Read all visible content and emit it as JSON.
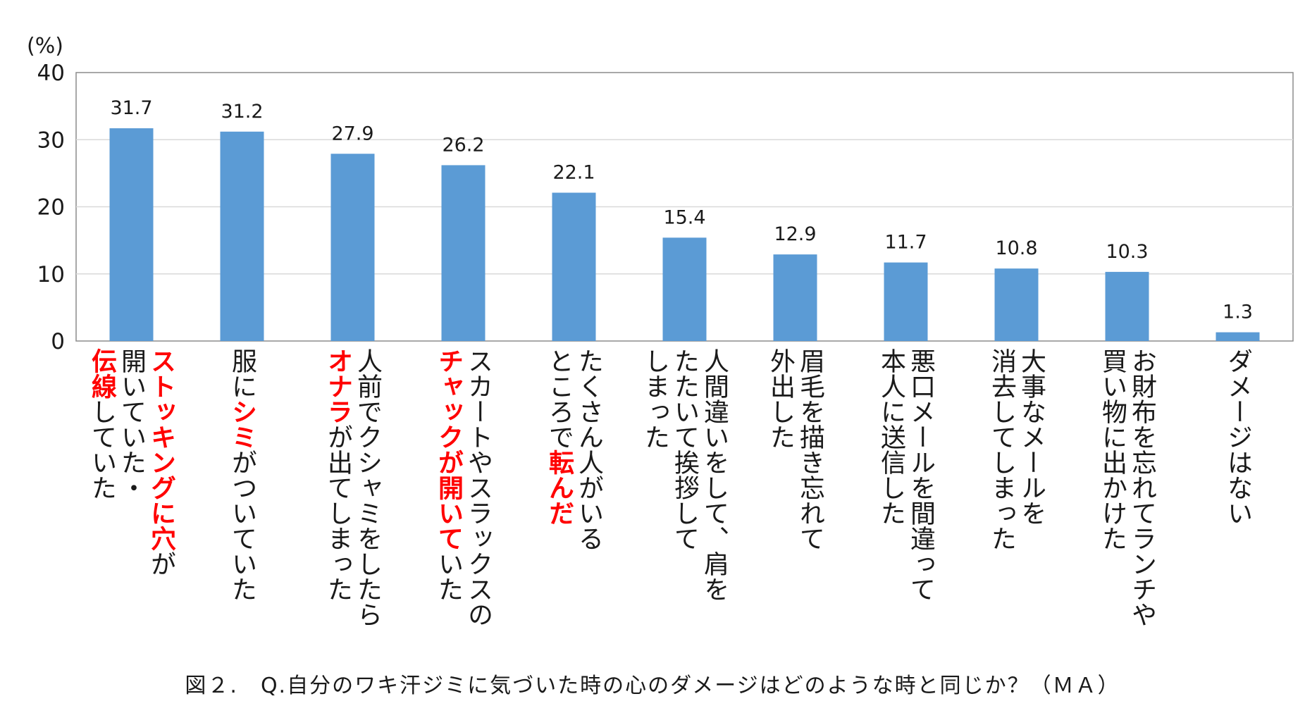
{
  "chart_data": {
    "type": "bar",
    "unit_label": "(%)",
    "ylim": [
      0,
      40
    ],
    "yticks": [
      0,
      10,
      20,
      30,
      40
    ],
    "grid": true,
    "bar_color": "#5b9bd5",
    "highlight_color": "#ff0000",
    "categories": [
      "ストッキングに穴が開いていた・伝線していた",
      "服にシミがついていた",
      "人前でクシャミをしたらオナラが出てしまった",
      "スカートやスラックスのチャックが開いていた",
      "たくさん人がいるところで転んだ",
      "人間違いをして、肩をたたいて挨拶してしまった",
      "眉毛を描き忘れて外出した",
      "悪口メールを間違って本人に送信した",
      "大事なメールを消去してしまった",
      "お財布を忘れてランチや買い物に出かけた",
      "ダメージはない"
    ],
    "category_columns": [
      [
        [
          {
            "t": "ストッキングに穴",
            "h": true
          },
          {
            "t": "が",
            "h": false
          }
        ],
        [
          {
            "t": "開いていた・",
            "h": false
          }
        ],
        [
          {
            "t": "伝線",
            "h": true
          },
          {
            "t": "していた",
            "h": false
          }
        ]
      ],
      [
        [
          {
            "t": "服に",
            "h": false
          },
          {
            "t": "シミ",
            "h": true
          },
          {
            "t": "がついていた",
            "h": false
          }
        ]
      ],
      [
        [
          {
            "t": "人前でクシャミをしたら",
            "h": false
          }
        ],
        [
          {
            "t": "オナラ",
            "h": true
          },
          {
            "t": "が出てしまった",
            "h": false
          }
        ]
      ],
      [
        [
          {
            "t": "スカートやスラックスの",
            "h": false
          }
        ],
        [
          {
            "t": "チャックが開いて",
            "h": true
          },
          {
            "t": "いた",
            "h": false
          }
        ]
      ],
      [
        [
          {
            "t": "たくさん人がいる",
            "h": false
          }
        ],
        [
          {
            "t": "ところで",
            "h": false
          },
          {
            "t": "転んだ",
            "h": true
          }
        ]
      ],
      [
        [
          {
            "t": "人間違いをして、肩を",
            "h": false
          }
        ],
        [
          {
            "t": "たたいて挨拶して",
            "h": false
          }
        ],
        [
          {
            "t": "しまった",
            "h": false
          }
        ]
      ],
      [
        [
          {
            "t": "眉毛を描き忘れて",
            "h": false
          }
        ],
        [
          {
            "t": "外出した",
            "h": false
          }
        ]
      ],
      [
        [
          {
            "t": "悪口メールを間違って",
            "h": false
          }
        ],
        [
          {
            "t": "本人に送信した",
            "h": false
          }
        ]
      ],
      [
        [
          {
            "t": "大事なメールを",
            "h": false
          }
        ],
        [
          {
            "t": "消去してしまった",
            "h": false
          }
        ]
      ],
      [
        [
          {
            "t": "お財布を忘れてランチや",
            "h": false
          }
        ],
        [
          {
            "t": "買い物に出かけた",
            "h": false
          }
        ]
      ],
      [
        [
          {
            "t": "ダメージはない",
            "h": false
          }
        ]
      ]
    ],
    "values": [
      31.7,
      31.2,
      27.9,
      26.2,
      22.1,
      15.4,
      12.9,
      11.7,
      10.8,
      10.3,
      1.3
    ],
    "value_labels": [
      "31.7",
      "31.2",
      "27.9",
      "26.2",
      "22.1",
      "15.4",
      "12.9",
      "11.7",
      "10.8",
      "10.3",
      "1.3"
    ]
  },
  "caption": "図２.　Q.自分のワキ汗ジミに気づいた時の心のダメージはどのような時と同じか？（ＭＡ）"
}
